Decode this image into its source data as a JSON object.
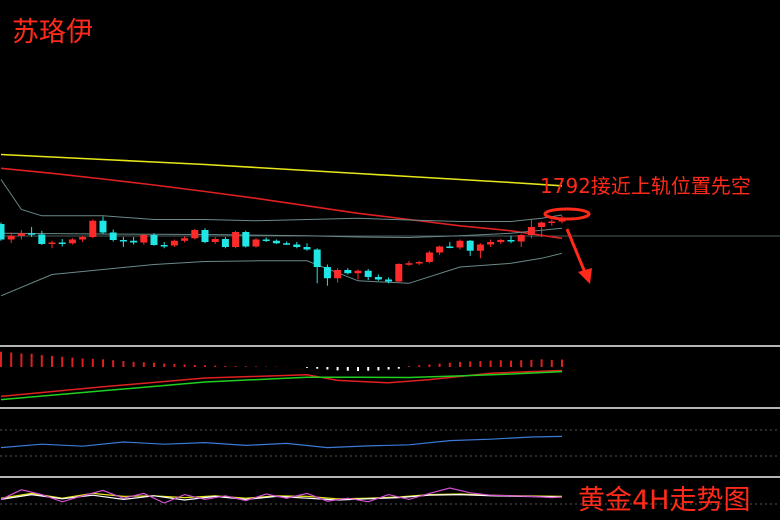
{
  "labels": {
    "author": "苏珞伊",
    "annotation": "1792接近上轨位置先空",
    "footer": "黄金4H走势图"
  },
  "colors": {
    "background": "#000000",
    "up_candle": "#ff2a2a",
    "down_candle": "#21e6e6",
    "ma_long": "#e6e61a",
    "ma_mid": "#e02020",
    "bollinger": "#6a8a8a",
    "macd_dif": "#e02020",
    "macd_dea": "#20d020",
    "macd_hist_pos": "#e02020",
    "macd_hist_neg": "#ffffff",
    "indicator_line": "#3a7ad8",
    "osc_a": "#d050d0",
    "osc_b": "#e6e61a",
    "osc_c": "#ffffff",
    "annotation": "#ff2a1a",
    "divider": "#b4b4b4"
  },
  "chart_data": {
    "type": "candlestick",
    "candles": [
      {
        "o": 1.52,
        "h": 1.58,
        "l": 0.85,
        "c": 0.9
      },
      {
        "o": 0.9,
        "h": 1.18,
        "l": 0.76,
        "c": 1.05
      },
      {
        "o": 1.05,
        "h": 1.28,
        "l": 0.9,
        "c": 1.15
      },
      {
        "o": 1.15,
        "h": 1.4,
        "l": 1.0,
        "c": 1.1
      },
      {
        "o": 1.1,
        "h": 1.25,
        "l": 0.68,
        "c": 0.72
      },
      {
        "o": 0.72,
        "h": 0.85,
        "l": 0.55,
        "c": 0.78
      },
      {
        "o": 0.78,
        "h": 0.92,
        "l": 0.62,
        "c": 0.75
      },
      {
        "o": 0.75,
        "h": 0.95,
        "l": 0.7,
        "c": 0.9
      },
      {
        "o": 0.9,
        "h": 1.05,
        "l": 0.8,
        "c": 1.0
      },
      {
        "o": 1.0,
        "h": 1.7,
        "l": 0.95,
        "c": 1.65
      },
      {
        "o": 1.65,
        "h": 1.82,
        "l": 1.12,
        "c": 1.18
      },
      {
        "o": 1.18,
        "h": 1.3,
        "l": 0.82,
        "c": 0.88
      },
      {
        "o": 0.88,
        "h": 1.0,
        "l": 0.6,
        "c": 0.85
      },
      {
        "o": 0.85,
        "h": 1.0,
        "l": 0.7,
        "c": 0.78
      },
      {
        "o": 0.78,
        "h": 1.12,
        "l": 0.7,
        "c": 1.08
      },
      {
        "o": 1.08,
        "h": 1.15,
        "l": 0.65,
        "c": 0.68
      },
      {
        "o": 0.68,
        "h": 0.8,
        "l": 0.55,
        "c": 0.66
      },
      {
        "o": 0.66,
        "h": 0.9,
        "l": 0.6,
        "c": 0.85
      },
      {
        "o": 0.85,
        "h": 1.02,
        "l": 0.78,
        "c": 0.95
      },
      {
        "o": 0.95,
        "h": 1.32,
        "l": 0.9,
        "c": 1.28
      },
      {
        "o": 1.28,
        "h": 1.35,
        "l": 0.75,
        "c": 0.8
      },
      {
        "o": 0.8,
        "h": 1.0,
        "l": 0.72,
        "c": 0.92
      },
      {
        "o": 0.92,
        "h": 1.0,
        "l": 0.55,
        "c": 0.6
      },
      {
        "o": 0.6,
        "h": 1.25,
        "l": 0.55,
        "c": 1.2
      },
      {
        "o": 1.2,
        "h": 1.25,
        "l": 0.58,
        "c": 0.62
      },
      {
        "o": 0.62,
        "h": 0.95,
        "l": 0.58,
        "c": 0.9
      },
      {
        "o": 0.9,
        "h": 0.98,
        "l": 0.8,
        "c": 0.85
      },
      {
        "o": 0.85,
        "h": 0.9,
        "l": 0.72,
        "c": 0.75
      },
      {
        "o": 0.75,
        "h": 0.82,
        "l": 0.68,
        "c": 0.7
      },
      {
        "o": 0.7,
        "h": 0.8,
        "l": 0.55,
        "c": 0.6
      },
      {
        "o": 0.6,
        "h": 0.75,
        "l": 0.45,
        "c": 0.5
      },
      {
        "o": 0.5,
        "h": 0.55,
        "l": -0.85,
        "c": -0.2
      },
      {
        "o": -0.2,
        "h": -0.1,
        "l": -0.95,
        "c": -0.65
      },
      {
        "o": -0.65,
        "h": -0.25,
        "l": -0.82,
        "c": -0.32
      },
      {
        "o": -0.32,
        "h": -0.25,
        "l": -0.5,
        "c": -0.45
      },
      {
        "o": -0.45,
        "h": -0.3,
        "l": -0.7,
        "c": -0.35
      },
      {
        "o": -0.35,
        "h": -0.28,
        "l": -0.72,
        "c": -0.6
      },
      {
        "o": -0.6,
        "h": -0.5,
        "l": -0.75,
        "c": -0.7
      },
      {
        "o": -0.7,
        "h": -0.62,
        "l": -0.85,
        "c": -0.78
      },
      {
        "o": -0.78,
        "h": -0.05,
        "l": -0.8,
        "c": -0.08
      },
      {
        "o": -0.08,
        "h": 0.05,
        "l": -0.15,
        "c": -0.05
      },
      {
        "o": -0.05,
        "h": 0.05,
        "l": -0.12,
        "c": 0.0
      },
      {
        "o": 0.0,
        "h": 0.45,
        "l": -0.05,
        "c": 0.38
      },
      {
        "o": 0.38,
        "h": 0.65,
        "l": 0.28,
        "c": 0.62
      },
      {
        "o": 0.62,
        "h": 0.8,
        "l": 0.55,
        "c": 0.58
      },
      {
        "o": 0.58,
        "h": 0.9,
        "l": 0.5,
        "c": 0.85
      },
      {
        "o": 0.85,
        "h": 0.88,
        "l": 0.25,
        "c": 0.45
      },
      {
        "o": 0.45,
        "h": 0.75,
        "l": 0.15,
        "c": 0.7
      },
      {
        "o": 0.7,
        "h": 0.9,
        "l": 0.6,
        "c": 0.8
      },
      {
        "o": 0.8,
        "h": 0.92,
        "l": 0.72,
        "c": 0.88
      },
      {
        "o": 0.88,
        "h": 1.05,
        "l": 0.75,
        "c": 0.82
      },
      {
        "o": 0.82,
        "h": 1.12,
        "l": 0.6,
        "c": 1.08
      },
      {
        "o": 1.08,
        "h": 1.7,
        "l": 0.95,
        "c": 1.4
      },
      {
        "o": 1.4,
        "h": 1.62,
        "l": 1.0,
        "c": 1.58
      },
      {
        "o": 1.58,
        "h": 1.7,
        "l": 1.45,
        "c": 1.62
      },
      {
        "o": 1.62,
        "h": 1.85,
        "l": 1.55,
        "c": 1.78
      }
    ],
    "ma_long": [
      [
        0,
        4.3
      ],
      [
        5,
        4.2
      ],
      [
        10,
        4.1
      ],
      [
        15,
        4.0
      ],
      [
        20,
        3.9
      ],
      [
        25,
        3.78
      ],
      [
        30,
        3.66
      ],
      [
        35,
        3.54
      ],
      [
        40,
        3.42
      ],
      [
        45,
        3.3
      ],
      [
        50,
        3.18
      ],
      [
        55,
        3.05
      ]
    ],
    "ma_mid": [
      [
        0,
        3.75
      ],
      [
        5,
        3.55
      ],
      [
        10,
        3.32
      ],
      [
        15,
        3.08
      ],
      [
        20,
        2.82
      ],
      [
        25,
        2.55
      ],
      [
        30,
        2.25
      ],
      [
        35,
        1.95
      ],
      [
        40,
        1.7
      ],
      [
        45,
        1.45
      ],
      [
        50,
        1.25
      ],
      [
        55,
        0.95
      ]
    ],
    "boll_upper": [
      [
        0,
        3.3
      ],
      [
        2,
        2.1
      ],
      [
        4,
        1.85
      ],
      [
        10,
        1.85
      ],
      [
        15,
        1.7
      ],
      [
        20,
        1.7
      ],
      [
        25,
        1.65
      ],
      [
        30,
        1.7
      ],
      [
        35,
        1.75
      ],
      [
        40,
        1.68
      ],
      [
        45,
        1.62
      ],
      [
        50,
        1.62
      ],
      [
        53,
        1.75
      ],
      [
        55,
        1.88
      ]
    ],
    "boll_mid": [
      [
        0,
        1.15
      ],
      [
        10,
        1.12
      ],
      [
        20,
        1.1
      ],
      [
        30,
        1.05
      ],
      [
        35,
        1.0
      ],
      [
        40,
        0.98
      ],
      [
        45,
        1.05
      ],
      [
        50,
        1.15
      ],
      [
        55,
        1.35
      ]
    ],
    "boll_lower": [
      [
        0,
        -1.35
      ],
      [
        5,
        -0.5
      ],
      [
        10,
        -0.3
      ],
      [
        15,
        -0.1
      ],
      [
        20,
        0.02
      ],
      [
        25,
        0.05
      ],
      [
        30,
        0.05
      ],
      [
        35,
        -0.75
      ],
      [
        40,
        -0.85
      ],
      [
        45,
        -0.2
      ],
      [
        50,
        -0.05
      ],
      [
        53,
        0.15
      ],
      [
        55,
        0.35
      ]
    ],
    "macd_hist": [
      0.9,
      0.85,
      0.8,
      0.78,
      0.7,
      0.65,
      0.6,
      0.55,
      0.5,
      0.48,
      0.45,
      0.4,
      0.35,
      0.3,
      0.28,
      0.25,
      0.2,
      0.18,
      0.15,
      0.12,
      0.1,
      0.08,
      0.06,
      0.05,
      0.04,
      0.03,
      0.02,
      0.02,
      0.01,
      0.0,
      -0.05,
      -0.1,
      -0.15,
      -0.2,
      -0.22,
      -0.24,
      -0.22,
      -0.2,
      -0.15,
      -0.1,
      0.05,
      0.1,
      0.15,
      0.2,
      0.25,
      0.3,
      0.33,
      0.35,
      0.38,
      0.4,
      0.38,
      0.4,
      0.42,
      0.45,
      0.42,
      0.44
    ],
    "macd_dif": [
      [
        0,
        -0.9
      ],
      [
        10,
        -0.3
      ],
      [
        20,
        0.25
      ],
      [
        30,
        0.45
      ],
      [
        33,
        0.1
      ],
      [
        38,
        -0.05
      ],
      [
        42,
        0.15
      ],
      [
        48,
        0.55
      ],
      [
        55,
        0.72
      ]
    ],
    "macd_dea": [
      [
        0,
        -1.1
      ],
      [
        10,
        -0.55
      ],
      [
        20,
        0.0
      ],
      [
        30,
        0.3
      ],
      [
        35,
        0.3
      ],
      [
        40,
        0.28
      ],
      [
        45,
        0.38
      ],
      [
        50,
        0.5
      ],
      [
        55,
        0.65
      ]
    ],
    "indicator": [
      [
        0,
        0.3
      ],
      [
        4,
        0.42
      ],
      [
        8,
        0.35
      ],
      [
        12,
        0.5
      ],
      [
        16,
        0.42
      ],
      [
        20,
        0.48
      ],
      [
        24,
        0.38
      ],
      [
        28,
        0.45
      ],
      [
        32,
        0.3
      ],
      [
        36,
        0.36
      ],
      [
        40,
        0.4
      ],
      [
        44,
        0.55
      ],
      [
        48,
        0.6
      ],
      [
        52,
        0.68
      ],
      [
        55,
        0.7
      ]
    ],
    "osc_a": [
      [
        0,
        -0.2
      ],
      [
        2,
        0.6
      ],
      [
        4,
        0.2
      ],
      [
        6,
        -0.4
      ],
      [
        8,
        0.1
      ],
      [
        10,
        0.55
      ],
      [
        12,
        -0.1
      ],
      [
        14,
        0.3
      ],
      [
        16,
        -0.5
      ],
      [
        18,
        0.2
      ],
      [
        20,
        -0.2
      ],
      [
        22,
        0.1
      ],
      [
        24,
        -0.3
      ],
      [
        26,
        0.25
      ],
      [
        28,
        -0.1
      ],
      [
        30,
        0.3
      ],
      [
        32,
        -0.35
      ],
      [
        34,
        -0.1
      ],
      [
        36,
        -0.4
      ],
      [
        38,
        0.2
      ],
      [
        40,
        -0.2
      ],
      [
        42,
        0.3
      ],
      [
        44,
        0.75
      ],
      [
        46,
        0.35
      ],
      [
        48,
        0.15
      ],
      [
        50,
        0.1
      ],
      [
        52,
        0.05
      ],
      [
        54,
        -0.05
      ],
      [
        55,
        0.0
      ]
    ],
    "osc_b": [
      [
        0,
        -0.1
      ],
      [
        3,
        0.3
      ],
      [
        6,
        -0.1
      ],
      [
        9,
        0.3
      ],
      [
        12,
        0.05
      ],
      [
        15,
        0.1
      ],
      [
        18,
        -0.05
      ],
      [
        21,
        0.1
      ],
      [
        24,
        -0.1
      ],
      [
        27,
        0.1
      ],
      [
        30,
        0.05
      ],
      [
        33,
        -0.15
      ],
      [
        36,
        -0.1
      ],
      [
        39,
        0.0
      ],
      [
        42,
        0.2
      ],
      [
        45,
        0.25
      ],
      [
        48,
        0.15
      ],
      [
        51,
        0.1
      ],
      [
        55,
        0.05
      ]
    ],
    "osc_c": [
      [
        0,
        -0.2
      ],
      [
        3,
        0.2
      ],
      [
        6,
        -0.15
      ],
      [
        9,
        0.15
      ],
      [
        12,
        -0.2
      ],
      [
        15,
        0.1
      ],
      [
        18,
        -0.25
      ],
      [
        21,
        0.05
      ],
      [
        24,
        -0.2
      ],
      [
        27,
        0.05
      ],
      [
        30,
        -0.1
      ],
      [
        33,
        -0.25
      ],
      [
        36,
        -0.15
      ],
      [
        39,
        -0.05
      ],
      [
        42,
        0.15
      ],
      [
        45,
        0.2
      ],
      [
        48,
        0.1
      ],
      [
        51,
        0.05
      ],
      [
        55,
        0.0
      ]
    ]
  }
}
